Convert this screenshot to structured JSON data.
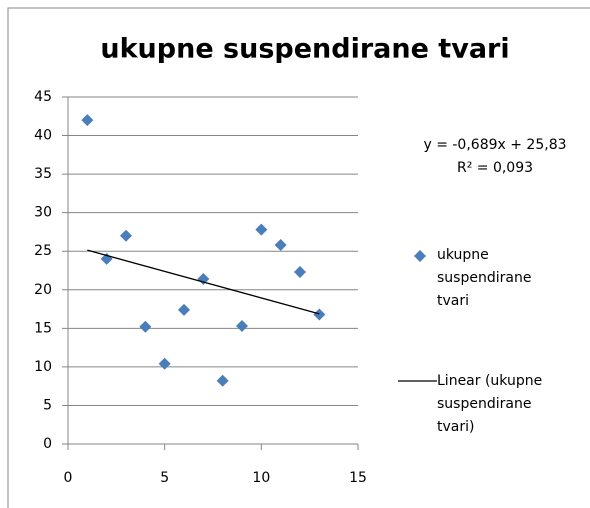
{
  "chart_data": {
    "type": "scatter",
    "title": "ukupne suspendirane tvari",
    "series": [
      {
        "name": "ukupne suspendirane tvari",
        "color": "#4a7ebb",
        "x": [
          1,
          2,
          3,
          4,
          5,
          6,
          7,
          8,
          9,
          10,
          11,
          12,
          13
        ],
        "values": [
          42,
          24,
          27,
          15.2,
          10.4,
          17.4,
          21.4,
          8.2,
          15.3,
          27.8,
          25.8,
          22.3,
          16.8
        ]
      }
    ],
    "trendline": {
      "name": "Linear (ukupne suspendirane tvari)",
      "color": "#000000",
      "slope": -0.689,
      "intercept": 25.83,
      "equation": "y = -0,689x + 25,83",
      "r2": "R² = 0,093"
    },
    "xlim": [
      0,
      15
    ],
    "xticks": [
      0,
      5,
      10,
      15
    ],
    "ylim": [
      0,
      45
    ],
    "yticks": [
      0,
      5,
      10,
      15,
      20,
      25,
      30,
      35,
      40,
      45
    ],
    "grid": true,
    "legend": "right"
  }
}
